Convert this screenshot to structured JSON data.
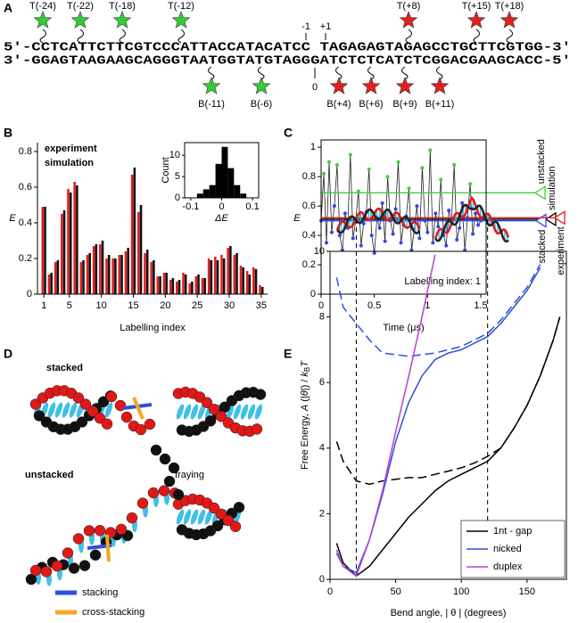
{
  "panel_labels": [
    "A",
    "B",
    "C",
    "D",
    "E"
  ],
  "panel_a": {
    "top_strand": "5'-CCTCATTCTTCGTCCCATTACCATACATCC TAGAGAGTAGAGCCTGCTTCGTGG-3'",
    "bottom_strand": "3'-GGAGTAAGAAGCAGGGTAATGGTATGTAGGGATCTCTCATCTCGGACGAAGCACC-5'",
    "nick_labels": [
      "-1",
      "+1",
      "0"
    ],
    "top_labels": [
      {
        "text": "T(-24)",
        "color": "#33cc33"
      },
      {
        "text": "T(-22)",
        "color": "#33cc33"
      },
      {
        "text": "T(-18)",
        "color": "#33cc33"
      },
      {
        "text": "T(-12)",
        "color": "#33cc33"
      },
      {
        "text": "T(+8)",
        "color": "#e21f1f"
      },
      {
        "text": "T(+15)",
        "color": "#e21f1f"
      },
      {
        "text": "T(+18)",
        "color": "#e21f1f"
      }
    ],
    "bottom_labels": [
      {
        "text": "B(-11)",
        "color": "#33cc33"
      },
      {
        "text": "B(-6)",
        "color": "#33cc33"
      },
      {
        "text": "B(+4)",
        "color": "#e21f1f"
      },
      {
        "text": "B(+6)",
        "color": "#e21f1f"
      },
      {
        "text": "B(+9)",
        "color": "#e21f1f"
      },
      {
        "text": "B(+11)",
        "color": "#e21f1f"
      }
    ]
  },
  "panel_d": {
    "labels": [
      "stacked",
      "unstacked",
      "fraying"
    ],
    "legend": [
      {
        "text": "stacking",
        "color": "#2b4fe0"
      },
      {
        "text": "cross-stacking",
        "color": "#f5a623"
      }
    ]
  },
  "chart_data": [
    {
      "type": "bar",
      "xlabel": "Labelling index",
      "ylabel": "E",
      "x": [
        1,
        2,
        3,
        4,
        5,
        6,
        7,
        8,
        9,
        10,
        11,
        12,
        13,
        14,
        15,
        16,
        17,
        18,
        19,
        20,
        21,
        22,
        23,
        24,
        25,
        26,
        27,
        28,
        29,
        30,
        31,
        32,
        33,
        34,
        35
      ],
      "xlim": [
        0,
        36
      ],
      "xticks": [
        1,
        5,
        10,
        15,
        20,
        25,
        30,
        35
      ],
      "ylim": [
        0,
        0.85
      ],
      "yticks": [
        0,
        0.2,
        0.4,
        0.6,
        0.8
      ],
      "legend": "upper left",
      "series": [
        {
          "name": "experiment",
          "color": "#e21f1f",
          "values": [
            0.49,
            0.11,
            0.18,
            0.45,
            0.59,
            0.63,
            0.18,
            0.22,
            0.27,
            0.28,
            0.2,
            0.2,
            0.22,
            0.24,
            0.67,
            0.46,
            0.23,
            0.18,
            0.1,
            0.12,
            0.08,
            0.07,
            0.12,
            0.06,
            0.1,
            0.09,
            0.2,
            0.21,
            0.22,
            0.26,
            0.22,
            0.16,
            0.13,
            0.15,
            0.05
          ]
        },
        {
          "name": "simulation",
          "color": "#111111",
          "values": [
            0.49,
            0.12,
            0.19,
            0.47,
            0.57,
            0.61,
            0.19,
            0.23,
            0.28,
            0.3,
            0.22,
            0.2,
            0.22,
            0.26,
            0.71,
            0.5,
            0.25,
            0.19,
            0.1,
            0.12,
            0.09,
            0.08,
            0.11,
            0.07,
            0.11,
            0.09,
            0.19,
            0.19,
            0.2,
            0.27,
            0.23,
            0.15,
            0.11,
            0.14,
            0.04
          ]
        }
      ]
    },
    {
      "type": "histogram",
      "xlabel": "ΔE",
      "ylabel": "Count",
      "bins": [
        -0.08,
        -0.06,
        -0.04,
        -0.02,
        0,
        0.02,
        0.04,
        0.06,
        0.08
      ],
      "values": [
        1,
        2,
        3,
        8,
        12,
        7,
        3,
        1
      ],
      "color": "#000000",
      "xlim": [
        -0.12,
        0.12
      ],
      "xticks": [
        -0.1,
        0,
        0.1
      ],
      "ylim": [
        0,
        13
      ],
      "yticks": [
        0,
        5,
        10
      ]
    },
    {
      "type": "line",
      "xlabel": "Time (μs)",
      "ylabel": "E",
      "annotation": "Labelling index: 1",
      "xlim": [
        0,
        1.55
      ],
      "xticks": [
        0,
        0.5,
        1,
        1.5
      ],
      "ylim": [
        0,
        1.05
      ],
      "yticks": [
        0,
        0.2,
        0.4,
        0.6,
        0.8,
        1
      ],
      "line_color": "#222222",
      "x": [
        0,
        0.025,
        0.05,
        0.075,
        0.1,
        0.125,
        0.15,
        0.175,
        0.2,
        0.225,
        0.25,
        0.275,
        0.3,
        0.325,
        0.35,
        0.375,
        0.4,
        0.425,
        0.45,
        0.475,
        0.5,
        0.525,
        0.55,
        0.575,
        0.6,
        0.625,
        0.65,
        0.675,
        0.7,
        0.725,
        0.75,
        0.775,
        0.8,
        0.825,
        0.85,
        0.875,
        0.9,
        0.925,
        0.95,
        0.975,
        1,
        1.025,
        1.05,
        1.075,
        1.1,
        1.125,
        1.15,
        1.175,
        1.2,
        1.225,
        1.25,
        1.275,
        1.3,
        1.325,
        1.35,
        1.375,
        1.4,
        1.425,
        1.45,
        1.475,
        1.5
      ],
      "values": [
        0.5,
        0.82,
        0.35,
        0.9,
        0.42,
        0.6,
        0.88,
        0.4,
        0.3,
        0.55,
        0.45,
        0.95,
        0.38,
        0.5,
        0.7,
        0.33,
        0.48,
        0.56,
        0.85,
        0.4,
        0.28,
        0.52,
        0.45,
        0.62,
        0.36,
        0.8,
        0.5,
        0.41,
        0.58,
        0.9,
        0.35,
        0.47,
        0.53,
        0.72,
        0.3,
        0.44,
        0.6,
        0.38,
        0.86,
        0.5,
        0.42,
        0.98,
        0.35,
        0.55,
        0.46,
        0.78,
        0.4,
        0.33,
        0.57,
        0.5,
        0.88,
        0.37,
        0.45,
        0.62,
        0.3,
        0.52,
        0.75,
        0.41,
        0.55,
        0.47,
        0.5
      ],
      "point_level": [
        2,
        0,
        2,
        0,
        2,
        2,
        0,
        2,
        2,
        2,
        2,
        0,
        2,
        2,
        0,
        2,
        2,
        2,
        0,
        2,
        2,
        2,
        2,
        2,
        2,
        0,
        2,
        2,
        2,
        0,
        2,
        2,
        2,
        0,
        2,
        2,
        2,
        2,
        0,
        2,
        2,
        0,
        2,
        2,
        2,
        0,
        2,
        2,
        2,
        2,
        0,
        2,
        2,
        2,
        2,
        2,
        0,
        2,
        2,
        2,
        2
      ],
      "levels": [
        {
          "name": "unstacked",
          "value": 0.69,
          "color": "#44cc44"
        },
        {
          "name": "simulation",
          "value": 0.51,
          "color": "#000000"
        },
        {
          "name": "stacked",
          "value": 0.5,
          "color": "#3344ee"
        },
        {
          "name": "experiment",
          "value": 0.52,
          "color": "#e21f1f"
        }
      ]
    },
    {
      "type": "line",
      "xlabel": "Bend angle, | θ | (degrees)",
      "ylabel": [
        "Free Energy, ",
        "A",
        " (|",
        "θ",
        "|) / ",
        "k",
        "B",
        "T"
      ],
      "xlim": [
        0,
        180
      ],
      "xticks": [
        0,
        50,
        100,
        150
      ],
      "ylim": [
        0,
        10
      ],
      "yticks": [
        0,
        2,
        4,
        6,
        8,
        10
      ],
      "vlines": [
        20,
        120
      ],
      "legend": "lower right",
      "x": [
        5,
        10,
        20,
        30,
        40,
        50,
        60,
        70,
        80,
        90,
        100,
        110,
        120,
        130,
        140,
        150,
        160,
        170,
        175
      ],
      "series": [
        {
          "name": "1nt - gap",
          "color": "#000000",
          "dashed": false,
          "values": [
            1.1,
            0.5,
            0.1,
            0.4,
            0.9,
            1.4,
            1.9,
            2.3,
            2.7,
            3.0,
            3.2,
            3.4,
            3.6,
            4.0,
            4.6,
            5.3,
            6.2,
            7.3,
            8.0
          ]
        },
        {
          "color": "#000000",
          "dashed": true,
          "values": [
            4.2,
            3.6,
            3.0,
            2.9,
            3.0,
            3.05,
            3.1,
            3.1,
            3.2,
            3.3,
            3.4,
            3.55,
            3.75,
            4.0,
            4.6,
            5.3,
            6.2,
            7.3,
            8.0
          ]
        },
        {
          "name": "nicked",
          "color": "#2a4fd8",
          "dashed": false,
          "values": [
            0.8,
            0.4,
            0.2,
            1.2,
            2.6,
            4.2,
            5.4,
            6.2,
            6.7,
            6.9,
            7.0,
            7.2,
            7.4,
            7.8,
            8.3,
            8.8,
            9.5,
            null,
            null
          ]
        },
        {
          "color": "#2a4fd8",
          "dashed": true,
          "values": [
            9.2,
            8.3,
            7.8,
            7.3,
            6.9,
            6.85,
            6.8,
            6.85,
            6.9,
            7.0,
            7.1,
            7.3,
            7.5,
            7.9,
            8.4,
            8.9,
            9.6,
            null,
            null
          ]
        },
        {
          "name": "duplex",
          "color": "#b640d8",
          "dashed": false,
          "values": [
            0.9,
            0.4,
            0.1,
            1.2,
            2.7,
            4.5,
            6.2,
            8.0,
            9.9,
            null,
            null,
            null,
            null,
            null,
            null,
            null,
            null,
            null,
            null
          ]
        }
      ]
    }
  ]
}
